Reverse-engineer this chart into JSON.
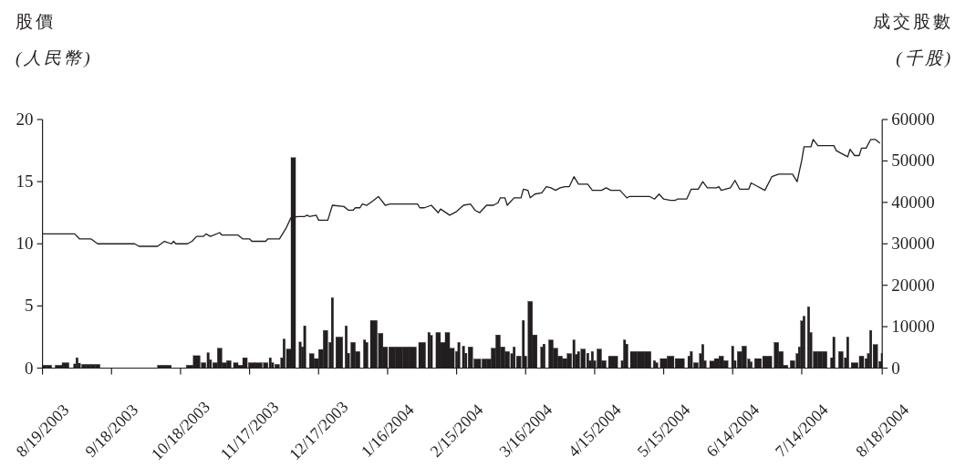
{
  "chart_data": {
    "type": "line",
    "ylabel": "股價\n(人民幣)",
    "y2label": "成交股數\n(千股)",
    "xlim": [
      "2003-08-19",
      "2004-08-18"
    ],
    "xticks": [
      {
        "value": "2003-08-19",
        "label": "8/19/2003"
      },
      {
        "value": "2003-09-18",
        "label": "9/18/2003"
      },
      {
        "value": "2003-10-18",
        "label": "10/18/2003"
      },
      {
        "value": "2003-11-17",
        "label": "11/17/2003"
      },
      {
        "value": "2003-12-17",
        "label": "12/17/2003"
      },
      {
        "value": "2004-01-16",
        "label": "1/16/2004"
      },
      {
        "value": "2004-02-15",
        "label": "2/15/2004"
      },
      {
        "value": "2004-03-16",
        "label": "3/16/2004"
      },
      {
        "value": "2004-04-15",
        "label": "4/15/2004"
      },
      {
        "value": "2004-05-15",
        "label": "5/15/2004"
      },
      {
        "value": "2004-06-14",
        "label": "6/14/2004"
      },
      {
        "value": "2004-07-14",
        "label": "7/14/2004"
      },
      {
        "value": "2004-08-18",
        "label": "8/18/2004"
      }
    ],
    "ylim": [
      0,
      20
    ],
    "yticks": [
      0,
      5,
      10,
      15,
      20
    ],
    "y2lim": [
      0,
      60000
    ],
    "y2ticks": [
      0,
      10000,
      20000,
      30000,
      40000,
      50000,
      60000
    ],
    "series": [
      {
        "type": "bar",
        "axis": "y2",
        "color": "#231f20",
        "x": [
          "2003-08-20",
          "2003-08-22",
          "2003-08-26",
          "2003-08-29",
          "2003-09-02",
          "2003-09-03",
          "2003-09-04",
          "2003-09-06",
          "2003-09-08",
          "2003-09-10",
          "2003-09-12",
          "2003-10-09",
          "2003-10-11",
          "2003-10-13",
          "2003-10-22",
          "2003-10-25",
          "2003-10-28",
          "2003-10-30",
          "2003-10-31",
          "2003-11-02",
          "2003-11-04",
          "2003-11-06",
          "2003-11-08",
          "2003-11-11",
          "2003-11-13",
          "2003-11-15",
          "2003-11-18",
          "2003-11-21",
          "2003-11-24",
          "2003-11-26",
          "2003-11-27",
          "2003-11-29",
          "2003-12-01",
          "2003-12-02",
          "2003-12-04",
          "2003-12-06",
          "2003-12-09",
          "2003-12-10",
          "2003-12-11",
          "2003-12-14",
          "2003-12-16",
          "2003-12-18",
          "2003-12-20",
          "2003-12-22",
          "2003-12-23",
          "2003-12-26",
          "2003-12-29",
          "2003-12-30",
          "2004-01-01",
          "2004-01-03",
          "2004-01-06",
          "2004-01-07",
          "2004-01-10",
          "2004-01-13",
          "2004-01-15",
          "2004-01-18",
          "2004-01-21",
          "2004-01-24",
          "2004-01-27",
          "2004-01-31",
          "2004-02-03",
          "2004-02-04",
          "2004-02-07",
          "2004-02-09",
          "2004-02-11",
          "2004-02-13",
          "2004-02-15",
          "2004-02-16",
          "2004-02-18",
          "2004-02-19",
          "2004-02-21",
          "2004-02-24",
          "2004-02-27",
          "2004-02-29",
          "2004-03-02",
          "2004-03-04",
          "2004-03-06",
          "2004-03-08",
          "2004-03-10",
          "2004-03-11",
          "2004-03-13",
          "2004-03-15",
          "2004-03-16",
          "2004-03-18",
          "2004-03-20",
          "2004-03-23",
          "2004-03-24",
          "2004-03-27",
          "2004-03-29",
          "2004-03-31",
          "2004-04-02",
          "2004-04-04",
          "2004-04-06",
          "2004-04-07",
          "2004-04-08",
          "2004-04-10",
          "2004-04-12",
          "2004-04-13",
          "2004-04-14",
          "2004-04-15",
          "2004-04-17",
          "2004-04-19",
          "2004-04-23",
          "2004-04-27",
          "2004-04-28",
          "2004-04-29",
          "2004-05-02",
          "2004-05-05",
          "2004-05-08",
          "2004-05-11",
          "2004-05-12",
          "2004-05-15",
          "2004-05-18",
          "2004-05-22",
          "2004-05-26",
          "2004-05-27",
          "2004-05-29",
          "2004-05-31",
          "2004-06-01",
          "2004-06-02",
          "2004-06-05",
          "2004-06-07",
          "2004-06-09",
          "2004-06-11",
          "2004-06-14",
          "2004-06-15",
          "2004-06-17",
          "2004-06-19",
          "2004-06-21",
          "2004-06-22",
          "2004-06-25",
          "2004-06-29",
          "2004-07-03",
          "2004-07-05",
          "2004-07-07",
          "2004-07-10",
          "2004-07-12",
          "2004-07-13",
          "2004-07-14",
          "2004-07-15",
          "2004-07-17",
          "2004-07-18",
          "2004-07-20",
          "2004-07-22",
          "2004-07-24",
          "2004-07-27",
          "2004-07-28",
          "2004-07-31",
          "2004-08-02",
          "2004-08-03",
          "2004-08-06",
          "2004-08-09",
          "2004-08-11",
          "2004-08-12",
          "2004-08-13",
          "2004-08-15",
          "2004-08-17",
          "2004-08-18"
        ],
        "values": [
          700,
          700,
          700,
          1300,
          1000,
          2500,
          1200,
          900,
          900,
          900,
          900,
          700,
          700,
          700,
          700,
          3000,
          1300,
          3700,
          2000,
          1300,
          4800,
          1300,
          1800,
          1300,
          700,
          2500,
          1300,
          1300,
          1300,
          2500,
          1300,
          900,
          2500,
          7000,
          4600,
          50800,
          6300,
          5100,
          10200,
          3500,
          2300,
          4500,
          9100,
          6200,
          17000,
          7500,
          10200,
          3600,
          6200,
          4000,
          6800,
          6200,
          11500,
          8400,
          5100,
          5100,
          5100,
          5100,
          5100,
          6200,
          8600,
          7900,
          8600,
          6200,
          8600,
          4800,
          4000,
          6200,
          5300,
          3600,
          5100,
          2200,
          2200,
          2200,
          4800,
          8000,
          5100,
          4000,
          3500,
          5100,
          2900,
          11500,
          2900,
          16100,
          8000,
          5100,
          5800,
          6800,
          4800,
          2900,
          2300,
          3500,
          6800,
          3300,
          4000,
          4600,
          3600,
          1800,
          4000,
          1800,
          4600,
          1800,
          2900,
          1800,
          6800,
          5800,
          4000,
          4000,
          4000,
          1800,
          1300,
          2300,
          2900,
          2300,
          2900,
          4000,
          1300,
          3500,
          5700,
          1800,
          1700,
          2300,
          2900,
          1800,
          5300,
          1800,
          4000,
          5300,
          2200,
          1500,
          2300,
          2900,
          6200,
          4000,
          700,
          1800,
          3500,
          5100,
          11400,
          12500,
          14800,
          8600,
          4000,
          4000,
          4000,
          2500,
          7500,
          4000,
          2500,
          7500,
          1300,
          2900,
          2300,
          3500,
          9100,
          5700,
          1600,
          3500
        ]
      },
      {
        "color": "#231f20",
        "x": [
          "2003-08-19",
          "2003-09-02",
          "2003-09-04",
          "2003-09-09",
          "2003-09-12",
          "2003-09-28",
          "2003-09-30",
          "2003-10-08",
          "2003-10-11",
          "2003-10-14",
          "2003-10-15",
          "2003-10-16",
          "2003-10-21",
          "2003-10-23",
          "2003-10-25",
          "2003-10-28",
          "2003-10-29",
          "2003-10-31",
          "2003-11-04",
          "2003-11-05",
          "2003-11-12",
          "2003-11-14",
          "2003-11-17",
          "2003-11-18",
          "2003-11-24",
          "2003-11-25",
          "2003-11-30",
          "2003-12-03",
          "2003-12-05",
          "2003-12-08",
          "2003-12-11",
          "2003-12-12",
          "2003-12-13",
          "2003-12-16",
          "2003-12-17",
          "2003-12-21",
          "2003-12-23",
          "2003-12-28",
          "2003-12-30",
          "2004-01-01",
          "2004-01-02",
          "2004-01-04",
          "2004-01-05",
          "2004-01-07",
          "2004-01-10",
          "2004-01-12",
          "2004-01-15",
          "2004-01-17",
          "2004-01-29",
          "2004-01-30",
          "2004-02-01",
          "2004-02-04",
          "2004-02-07",
          "2004-02-08",
          "2004-02-12",
          "2004-02-15",
          "2004-02-18",
          "2004-02-21",
          "2004-02-23",
          "2004-02-25",
          "2004-02-28",
          "2004-03-02",
          "2004-03-04",
          "2004-03-05",
          "2004-03-07",
          "2004-03-08",
          "2004-03-11",
          "2004-03-14",
          "2004-03-15",
          "2004-03-17",
          "2004-03-18",
          "2004-03-20",
          "2004-03-23",
          "2004-03-25",
          "2004-03-27",
          "2004-03-29",
          "2004-03-31",
          "2004-04-02",
          "2004-04-04",
          "2004-04-06",
          "2004-04-08",
          "2004-04-12",
          "2004-04-14",
          "2004-04-18",
          "2004-04-20",
          "2004-04-22",
          "2004-04-26",
          "2004-04-29",
          "2004-04-30",
          "2004-05-09",
          "2004-05-11",
          "2004-05-13",
          "2004-05-15",
          "2004-05-18",
          "2004-05-20",
          "2004-05-21",
          "2004-05-25",
          "2004-05-27",
          "2004-05-30",
          "2004-06-01",
          "2004-06-03",
          "2004-06-07",
          "2004-06-08",
          "2004-06-09",
          "2004-06-13",
          "2004-06-15",
          "2004-06-17",
          "2004-06-21",
          "2004-06-22",
          "2004-06-24",
          "2004-06-28",
          "2004-07-01",
          "2004-07-04",
          "2004-07-10",
          "2004-07-12",
          "2004-07-14",
          "2004-07-15",
          "2004-07-18",
          "2004-07-19",
          "2004-07-21",
          "2004-07-28",
          "2004-07-29",
          "2004-08-03",
          "2004-08-04",
          "2004-08-06",
          "2004-08-08",
          "2004-08-09",
          "2004-08-11",
          "2004-08-13",
          "2004-08-15",
          "2004-08-17"
        ],
        "values": [
          10.8,
          10.8,
          10.4,
          10.4,
          10.0,
          10.0,
          9.8,
          9.8,
          10.2,
          10.0,
          10.2,
          10.0,
          10.0,
          10.2,
          10.6,
          10.6,
          10.8,
          10.6,
          10.9,
          10.7,
          10.7,
          10.4,
          10.4,
          10.2,
          10.2,
          10.4,
          10.4,
          11.3,
          12.1,
          12.2,
          12.2,
          12.3,
          12.2,
          12.3,
          11.9,
          11.9,
          13.1,
          13.0,
          12.7,
          12.7,
          12.9,
          12.9,
          13.2,
          13.1,
          13.5,
          13.8,
          13.1,
          13.2,
          13.2,
          12.9,
          12.9,
          13.1,
          12.5,
          12.8,
          12.3,
          12.6,
          13.1,
          13.2,
          12.7,
          12.5,
          13.1,
          13.1,
          13.3,
          13.7,
          13.7,
          13.1,
          13.7,
          13.7,
          14.4,
          14.3,
          13.7,
          14.0,
          14.1,
          14.6,
          14.5,
          14.3,
          14.5,
          14.6,
          14.6,
          15.4,
          14.8,
          14.8,
          14.3,
          14.3,
          14.5,
          14.3,
          14.3,
          13.7,
          13.8,
          13.8,
          13.6,
          14.0,
          13.6,
          13.5,
          13.5,
          13.6,
          13.6,
          14.4,
          14.4,
          15.0,
          14.5,
          14.5,
          14.6,
          14.3,
          14.5,
          15.1,
          14.4,
          14.4,
          14.9,
          14.7,
          14.3,
          15.4,
          15.6,
          15.6,
          15.0,
          16.7,
          17.8,
          17.8,
          18.4,
          17.9,
          17.9,
          17.5,
          17.0,
          17.6,
          17.1,
          17.1,
          17.7,
          17.7,
          18.4,
          18.4,
          18.1
        ]
      }
    ]
  }
}
